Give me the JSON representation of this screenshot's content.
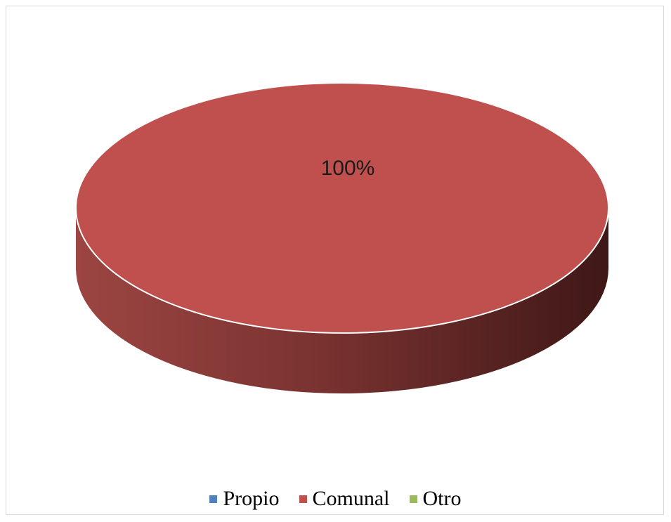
{
  "chart_data": {
    "type": "pie",
    "style": "3d",
    "categories": [
      "Propio",
      "Comunal",
      "Otro"
    ],
    "values": [
      0,
      100,
      0
    ],
    "data_labels": [
      "",
      "100%",
      ""
    ],
    "colors": [
      "#4F81BD",
      "#C0504D",
      "#9BBB59"
    ],
    "legend_position": "bottom",
    "title": ""
  },
  "legend": {
    "items": [
      {
        "label": "Propio",
        "color": "#4F81BD"
      },
      {
        "label": "Comunal",
        "color": "#C0504D"
      },
      {
        "label": "Otro",
        "color": "#9BBB59"
      }
    ]
  }
}
